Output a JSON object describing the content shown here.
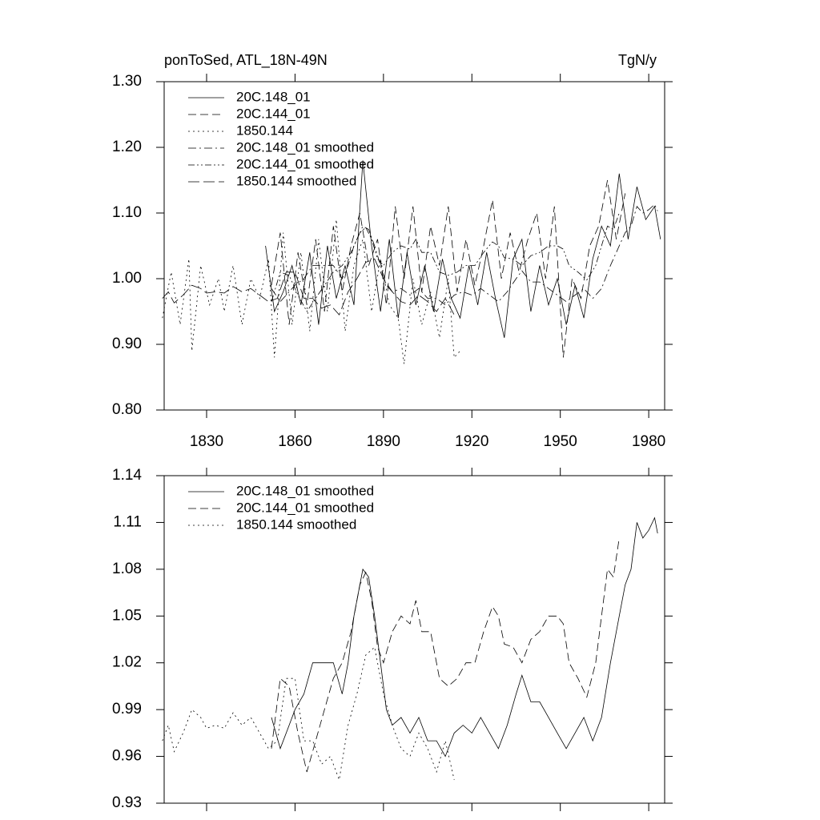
{
  "chart_data": [
    {
      "type": "line",
      "title": "ponToSed, ATL_18N-49N",
      "units": "TgN/y",
      "xlim": [
        1815.6,
        1985.4
      ],
      "xticks": [
        1830,
        1860,
        1890,
        1920,
        1950,
        1980
      ],
      "ylim": [
        0.8,
        1.3
      ],
      "yticks": [
        {
          "value": 0.8,
          "label": "0.80"
        },
        {
          "value": 0.9,
          "label": "0.90"
        },
        {
          "value": 1.0,
          "label": "1.00"
        },
        {
          "value": 1.1,
          "label": "1.10"
        },
        {
          "value": 1.2,
          "label": "1.20"
        },
        {
          "value": 1.3,
          "label": "1.30"
        }
      ],
      "legend": "upper left",
      "series": [
        {
          "name": "20C.148_01",
          "color": "#000000",
          "dash": "solid",
          "x": [
            1850,
            1853,
            1856,
            1859,
            1862,
            1865,
            1868,
            1871,
            1874,
            1877,
            1880,
            1883,
            1886,
            1889,
            1892,
            1895,
            1898,
            1901,
            1904,
            1907,
            1910,
            1913,
            1916,
            1919,
            1922,
            1925,
            1928,
            1931,
            1934,
            1937,
            1940,
            1943,
            1946,
            1949,
            1952,
            1955,
            1958,
            1961,
            1964,
            1967,
            1970,
            1973,
            1976,
            1979,
            1982,
            1984
          ],
          "values": [
            1.05,
            0.95,
            0.98,
            1.02,
            0.96,
            1.04,
            0.93,
            1.05,
            0.97,
            1.02,
            0.96,
            1.18,
            1.05,
            0.95,
            1.06,
            0.94,
            1.04,
            0.96,
            1.02,
            0.95,
            1.03,
            0.97,
            0.94,
            1.02,
            0.96,
            1.04,
            0.97,
            0.91,
            1.03,
            1.06,
            0.95,
            1.02,
            0.96,
            1.0,
            0.93,
            0.99,
            0.94,
            1.03,
            1.08,
            1.05,
            1.16,
            1.06,
            1.14,
            1.09,
            1.11,
            1.06
          ]
        },
        {
          "name": "20C.144_01",
          "color": "#000000",
          "dash": "dashed",
          "x": [
            1852,
            1855,
            1858,
            1861,
            1864,
            1867,
            1870,
            1873,
            1876,
            1879,
            1882,
            1885,
            1888,
            1891,
            1894,
            1897,
            1900,
            1903,
            1906,
            1909,
            1912,
            1915,
            1918,
            1921,
            1924,
            1927,
            1930,
            1933,
            1936,
            1939,
            1942,
            1945,
            1948,
            1951,
            1954,
            1957,
            1960,
            1963,
            1966,
            1969,
            1972
          ],
          "values": [
            0.99,
            1.07,
            0.93,
            1.04,
            0.96,
            1.06,
            0.95,
            1.08,
            0.98,
            1.05,
            1.1,
            1.02,
            1.06,
            0.96,
            1.11,
            1.0,
            1.11,
            0.98,
            1.08,
            1.02,
            1.11,
            0.98,
            1.06,
            0.99,
            1.05,
            1.12,
            1.0,
            1.07,
            1.01,
            1.06,
            1.1,
            1.0,
            1.11,
            0.88,
            1.0,
            0.97,
            1.05,
            1.08,
            1.15,
            1.06,
            1.13
          ]
        },
        {
          "name": "1850.144",
          "color": "#000000",
          "dash": "dotted",
          "x": [
            1815,
            1818,
            1821,
            1824,
            1825,
            1828,
            1831,
            1834,
            1836,
            1839,
            1842,
            1845,
            1848,
            1851,
            1853,
            1856,
            1859,
            1862,
            1865,
            1868,
            1871,
            1874,
            1877,
            1880,
            1883,
            1886,
            1889,
            1892,
            1895,
            1897,
            1900,
            1903,
            1906,
            1909,
            1912,
            1914,
            1916
          ],
          "values": [
            0.94,
            1.01,
            0.93,
            1.03,
            0.89,
            1.02,
            0.96,
            1.0,
            0.95,
            1.02,
            0.93,
            1.0,
            0.97,
            1.03,
            0.88,
            1.07,
            0.93,
            1.04,
            0.92,
            1.06,
            0.95,
            1.09,
            0.92,
            1.02,
            1.06,
            0.95,
            1.03,
            0.96,
            0.94,
            0.87,
            1.0,
            0.93,
            0.98,
            0.91,
            1.0,
            0.88,
            0.89
          ]
        },
        {
          "name": "20C.148_01 smoothed",
          "color": "#000000",
          "dash": "dash-dot",
          "x": [
            1852,
            1855,
            1858,
            1860,
            1863,
            1866,
            1870,
            1873,
            1876,
            1878,
            1880,
            1883,
            1885,
            1887,
            1889,
            1891,
            1893,
            1896,
            1899,
            1902,
            1905,
            1908,
            1911,
            1914,
            1917,
            1920,
            1923,
            1926,
            1929,
            1932,
            1935,
            1937,
            1940,
            1943,
            1946,
            1949,
            1952,
            1955,
            1958,
            1961,
            1964,
            1967,
            1970,
            1972,
            1974,
            1976,
            1978,
            1980,
            1982,
            1983
          ],
          "values": [
            0.985,
            0.965,
            0.98,
            0.99,
            1.0,
            1.02,
            1.02,
            1.02,
            1.0,
            1.02,
            1.05,
            1.08,
            1.075,
            1.05,
            1.02,
            0.99,
            0.98,
            0.985,
            0.975,
            0.985,
            0.97,
            0.97,
            0.96,
            0.975,
            0.98,
            0.975,
            0.985,
            0.975,
            0.965,
            0.98,
            1.0,
            1.012,
            0.995,
            0.995,
            0.985,
            0.975,
            0.965,
            0.975,
            0.985,
            0.97,
            0.985,
            1.02,
            1.05,
            1.07,
            1.08,
            1.11,
            1.1,
            1.105,
            1.113,
            1.103
          ]
        },
        {
          "name": "20C.144_01 smoothed",
          "color": "#000000",
          "dash": "dash-dot-dot",
          "x": [
            1852,
            1855,
            1858,
            1861,
            1864,
            1867,
            1870,
            1873,
            1876,
            1879,
            1882,
            1884,
            1886,
            1888,
            1890,
            1893,
            1896,
            1899,
            1901,
            1903,
            1906,
            1909,
            1912,
            1915,
            1918,
            1921,
            1924,
            1927,
            1929,
            1931,
            1934,
            1937,
            1940,
            1943,
            1946,
            1949,
            1951,
            1953,
            1956,
            1959,
            1962,
            1964,
            1966,
            1968,
            1970
          ],
          "values": [
            0.965,
            1.01,
            1.005,
            0.975,
            0.95,
            0.97,
            0.99,
            1.01,
            1.02,
            1.04,
            1.07,
            1.078,
            1.06,
            1.03,
            1.02,
            1.04,
            1.05,
            1.045,
            1.06,
            1.04,
            1.04,
            1.01,
            1.005,
            1.01,
            1.02,
            1.02,
            1.04,
            1.056,
            1.05,
            1.032,
            1.03,
            1.02,
            1.035,
            1.04,
            1.05,
            1.05,
            1.045,
            1.02,
            1.01,
            0.998,
            1.02,
            1.05,
            1.08,
            1.075,
            1.1
          ]
        },
        {
          "name": "1850.144 smoothed",
          "color": "#000000",
          "dash": "long-dashed",
          "x": [
            1815,
            1817,
            1819,
            1822,
            1825,
            1828,
            1830,
            1833,
            1836,
            1839,
            1842,
            1845,
            1848,
            1851,
            1854,
            1857,
            1860,
            1863,
            1866,
            1869,
            1872,
            1875,
            1878,
            1881,
            1884,
            1887,
            1890,
            1893,
            1896,
            1899,
            1902,
            1905,
            1908,
            1911,
            1914
          ],
          "values": [
            0.97,
            0.98,
            0.963,
            0.975,
            0.99,
            0.985,
            0.978,
            0.98,
            0.978,
            0.988,
            0.98,
            0.985,
            0.975,
            0.965,
            0.97,
            1.01,
            1.01,
            0.97,
            0.97,
            0.955,
            0.96,
            0.945,
            0.98,
            1.0,
            1.025,
            1.03,
            1.0,
            0.98,
            0.965,
            0.96,
            0.975,
            0.965,
            0.95,
            0.97,
            0.945
          ]
        }
      ]
    },
    {
      "type": "line",
      "xlim": [
        1815.6,
        1985.4
      ],
      "xticks": [
        1830,
        1860,
        1890,
        1920,
        1950,
        1980
      ],
      "ylim": [
        0.93,
        1.14
      ],
      "yticks": [
        0.93,
        0.96,
        0.99,
        1.02,
        1.05,
        1.08,
        1.11,
        1.14
      ],
      "legend": "upper left",
      "series": [
        {
          "name": "20C.148_01 smoothed",
          "color": "#000000",
          "dash": "solid",
          "x": [
            1852,
            1855,
            1858,
            1860,
            1863,
            1866,
            1870,
            1873,
            1876,
            1878,
            1880,
            1883,
            1885,
            1887,
            1889,
            1891,
            1893,
            1896,
            1899,
            1902,
            1905,
            1908,
            1911,
            1914,
            1917,
            1920,
            1923,
            1926,
            1929,
            1932,
            1935,
            1937,
            1940,
            1943,
            1946,
            1949,
            1952,
            1955,
            1958,
            1961,
            1964,
            1967,
            1970,
            1972,
            1974,
            1976,
            1978,
            1980,
            1982,
            1983
          ],
          "values": [
            0.985,
            0.965,
            0.98,
            0.99,
            1.0,
            1.02,
            1.02,
            1.02,
            1.0,
            1.02,
            1.05,
            1.08,
            1.075,
            1.05,
            1.02,
            0.99,
            0.98,
            0.985,
            0.975,
            0.985,
            0.97,
            0.97,
            0.96,
            0.975,
            0.98,
            0.975,
            0.985,
            0.975,
            0.965,
            0.98,
            1.0,
            1.012,
            0.995,
            0.995,
            0.985,
            0.975,
            0.965,
            0.975,
            0.985,
            0.97,
            0.985,
            1.02,
            1.05,
            1.07,
            1.08,
            1.11,
            1.1,
            1.105,
            1.113,
            1.103
          ]
        },
        {
          "name": "20C.144_01 smoothed",
          "color": "#000000",
          "dash": "dashed",
          "x": [
            1852,
            1855,
            1858,
            1861,
            1864,
            1867,
            1870,
            1873,
            1876,
            1879,
            1882,
            1884,
            1886,
            1888,
            1890,
            1893,
            1896,
            1899,
            1901,
            1903,
            1906,
            1909,
            1912,
            1915,
            1918,
            1921,
            1924,
            1927,
            1929,
            1931,
            1934,
            1937,
            1940,
            1943,
            1946,
            1949,
            1951,
            1953,
            1956,
            1959,
            1962,
            1964,
            1966,
            1968,
            1970
          ],
          "values": [
            0.965,
            1.01,
            1.005,
            0.975,
            0.95,
            0.97,
            0.99,
            1.01,
            1.02,
            1.04,
            1.07,
            1.078,
            1.06,
            1.03,
            1.02,
            1.04,
            1.05,
            1.045,
            1.06,
            1.04,
            1.04,
            1.01,
            1.005,
            1.01,
            1.02,
            1.02,
            1.04,
            1.056,
            1.05,
            1.032,
            1.03,
            1.02,
            1.035,
            1.04,
            1.05,
            1.05,
            1.045,
            1.02,
            1.01,
            0.998,
            1.02,
            1.05,
            1.08,
            1.075,
            1.1
          ]
        },
        {
          "name": "1850.144 smoothed",
          "color": "#000000",
          "dash": "dotted",
          "x": [
            1815,
            1817,
            1819,
            1822,
            1825,
            1828,
            1830,
            1833,
            1836,
            1839,
            1842,
            1845,
            1848,
            1851,
            1854,
            1857,
            1860,
            1863,
            1866,
            1869,
            1872,
            1875,
            1878,
            1881,
            1884,
            1887,
            1890,
            1893,
            1896,
            1899,
            1902,
            1905,
            1908,
            1911,
            1914
          ],
          "values": [
            0.97,
            0.98,
            0.963,
            0.975,
            0.99,
            0.985,
            0.978,
            0.98,
            0.978,
            0.988,
            0.98,
            0.985,
            0.975,
            0.965,
            0.97,
            1.01,
            1.01,
            0.97,
            0.97,
            0.955,
            0.96,
            0.945,
            0.98,
            1.0,
            1.025,
            1.03,
            1.0,
            0.98,
            0.965,
            0.96,
            0.975,
            0.965,
            0.95,
            0.97,
            0.945
          ]
        }
      ]
    }
  ]
}
